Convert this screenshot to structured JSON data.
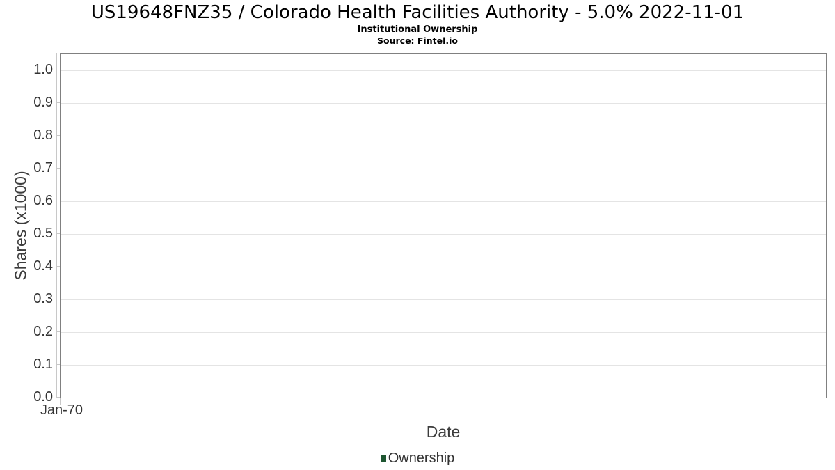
{
  "header": {
    "title": "US19648FNZ35 / Colorado Health Facilities Authority - 5.0% 2022-11-01",
    "subtitle": "Institutional Ownership",
    "source": "Source: Fintel.io"
  },
  "chart_data": {
    "type": "line",
    "title": "US19648FNZ35 / Colorado Health Facilities Authority - 5.0% 2022-11-01",
    "subtitle": "Institutional Ownership",
    "source": "Source: Fintel.io",
    "xlabel": "Date",
    "ylabel": "Shares (x1000)",
    "x_tick_labels": [
      "Jan-70"
    ],
    "y_ticks": [
      0.0,
      0.1,
      0.2,
      0.3,
      0.4,
      0.5,
      0.6,
      0.7,
      0.8,
      0.9,
      1.0
    ],
    "y_tick_format_decimals": 1,
    "ylim": [
      0,
      1.05
    ],
    "grid": true,
    "legend_position": "bottom-center",
    "series": [
      {
        "name": "Ownership",
        "color": "#1e5631",
        "x": [],
        "values": []
      }
    ]
  },
  "colors": {
    "plot_border": "#808080",
    "gridline": "#e4e4e4",
    "axis_line": "#c8c8c8",
    "tick_label": "#333333",
    "title": "#000000",
    "legend_marker": "#1e5631"
  }
}
